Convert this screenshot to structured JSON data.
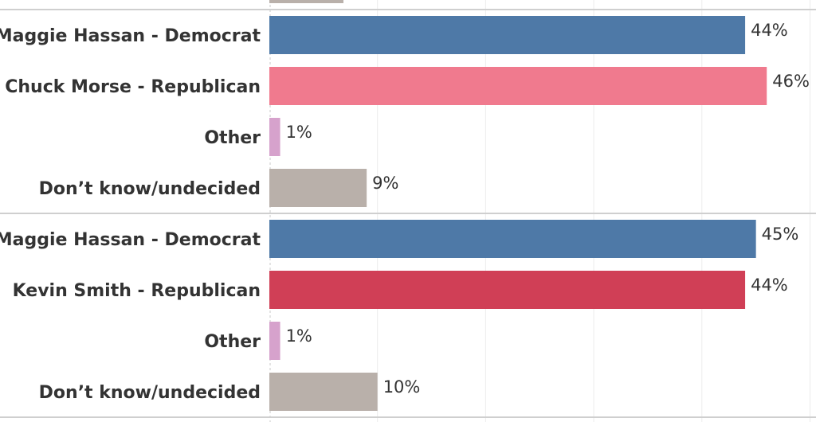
{
  "chart_data": {
    "type": "bar",
    "orientation": "horizontal",
    "unit": "%",
    "xlim": [
      0,
      51
    ],
    "grid": true,
    "colors": {
      "democrat": "#4e79a7",
      "republican_morse": "#f07a8e",
      "republican_smith": "#d03f56",
      "other": "#d6a2cc",
      "undecided": "#b9b0aa"
    },
    "panels": [
      {
        "categories": [
          "Maggie Hassan - Democrat",
          "Chuck Morse - Republican",
          "Other",
          "Don’t know/undecided"
        ],
        "values": [
          44,
          46,
          1,
          9
        ],
        "labels": [
          "44%",
          "46%",
          "1%",
          "9%"
        ],
        "colors": [
          "#4e79a7",
          "#f07a8e",
          "#d6a2cc",
          "#b9b0aa"
        ]
      },
      {
        "categories": [
          "Maggie Hassan - Democrat",
          "Kevin Smith - Republican",
          "Other",
          "Don’t know/undecided"
        ],
        "values": [
          45,
          44,
          1,
          10
        ],
        "labels": [
          "45%",
          "44%",
          "1%",
          "10%"
        ],
        "colors": [
          "#4e79a7",
          "#d03f56",
          "#d6a2cc",
          "#b9b0aa"
        ]
      }
    ]
  }
}
